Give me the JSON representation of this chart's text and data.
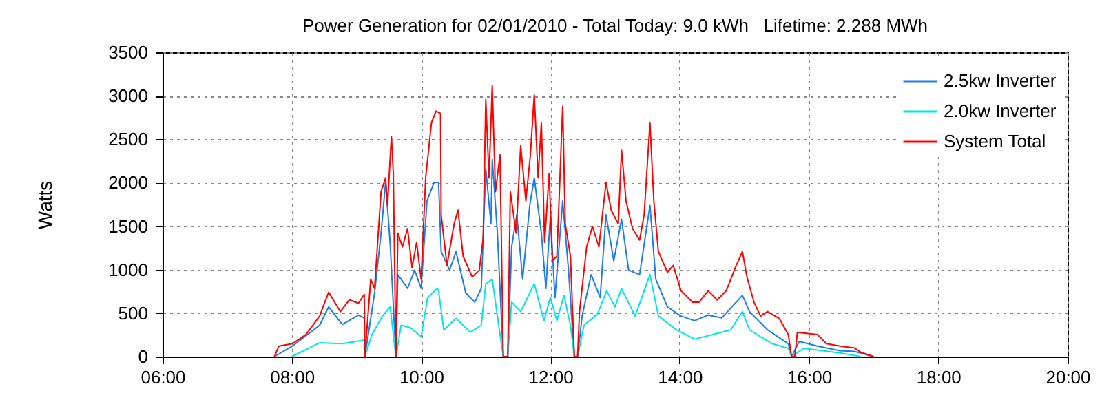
{
  "chart_data": {
    "type": "line",
    "title": "Power Generation for 02/01/2010 - Total Today: 9.0 kWh   Lifetime: 2.288 MWh",
    "ylabel": "Watts",
    "xlim": [
      6,
      20
    ],
    "xticks": [
      {
        "value": 6,
        "label": "06:00"
      },
      {
        "value": 8,
        "label": "08:00"
      },
      {
        "value": 10,
        "label": "10:00"
      },
      {
        "value": 12,
        "label": "12:00"
      },
      {
        "value": 14,
        "label": "14:00"
      },
      {
        "value": 16,
        "label": "16:00"
      },
      {
        "value": 18,
        "label": "18:00"
      },
      {
        "value": 20,
        "label": "20:00"
      }
    ],
    "ylim": [
      0,
      3500
    ],
    "yticks": [
      0,
      500,
      1000,
      1500,
      2000,
      2500,
      3000,
      3500
    ],
    "grid": true,
    "legend": "top right",
    "line_style": "solid",
    "series": [
      {
        "name": "2.5kw Inverter",
        "color": "#1c7ce8",
        "x": [
          7.73,
          8.01,
          8.43,
          8.57,
          8.78,
          9.03,
          9.12,
          9.13,
          9.28,
          9.38,
          9.45,
          9.52,
          9.61,
          9.64,
          9.79,
          9.9,
          10.0,
          10.09,
          10.2,
          10.27,
          10.31,
          10.44,
          10.54,
          10.69,
          10.83,
          10.93,
          11.0,
          11.08,
          11.1,
          11.18,
          11.27,
          11.34,
          11.4,
          11.48,
          11.57,
          11.68,
          11.75,
          11.86,
          11.93,
          12.0,
          12.07,
          12.19,
          12.28,
          12.37,
          12.42,
          12.49,
          12.63,
          12.77,
          12.86,
          12.98,
          13.1,
          13.21,
          13.38,
          13.54,
          13.63,
          13.81,
          14.02,
          14.23,
          14.44,
          14.65,
          14.97,
          15.08,
          15.36,
          15.68,
          15.73,
          15.85,
          16.13,
          16.48,
          16.7,
          17.0
        ],
        "values": [
          0,
          121,
          360,
          572,
          370,
          477,
          445,
          0,
          731,
          1420,
          2003,
          1314,
          0,
          943,
          784,
          995,
          784,
          1790,
          2003,
          2003,
          1208,
          995,
          1208,
          731,
          625,
          784,
          2161,
          1526,
          2268,
          1420,
          0,
          0,
          1261,
          1632,
          890,
          1738,
          2056,
          1420,
          784,
          1632,
          678,
          1790,
          995,
          0,
          0,
          466,
          943,
          678,
          1632,
          1102,
          1579,
          995,
          943,
          1738,
          890,
          572,
          466,
          413,
          477,
          445,
          704,
          518,
          307,
          148,
          0,
          174,
          121,
          68,
          60,
          0
        ]
      },
      {
        "name": "2.0kw Inverter",
        "color": "#00e5e5",
        "x": [
          8.0,
          8.43,
          8.78,
          9.12,
          9.13,
          9.24,
          9.4,
          9.52,
          9.61,
          9.69,
          9.83,
          10.0,
          10.1,
          10.25,
          10.27,
          10.35,
          10.54,
          10.76,
          10.93,
          11.0,
          11.1,
          11.18,
          11.27,
          11.34,
          11.4,
          11.54,
          11.75,
          11.9,
          12.0,
          12.1,
          12.21,
          12.31,
          12.37,
          12.42,
          12.52,
          12.73,
          12.87,
          13.0,
          13.1,
          13.31,
          13.54,
          13.67,
          13.95,
          14.23,
          14.51,
          14.79,
          14.97,
          15.08,
          15.43,
          15.68,
          15.73,
          15.92,
          16.48,
          16.8
        ],
        "values": [
          0,
          159,
          148,
          190,
          0,
          254,
          466,
          572,
          0,
          360,
          334,
          227,
          678,
          784,
          757,
          307,
          439,
          280,
          360,
          837,
          890,
          466,
          0,
          0,
          625,
          518,
          837,
          413,
          678,
          413,
          704,
          360,
          0,
          0,
          360,
          492,
          757,
          572,
          784,
          466,
          943,
          466,
          307,
          201,
          254,
          307,
          518,
          307,
          148,
          95,
          0,
          95,
          42,
          0
        ]
      },
      {
        "name": "System Total",
        "color": "#ff0000",
        "x": [
          7.73,
          7.8,
          8.01,
          8.22,
          8.43,
          8.57,
          8.75,
          8.89,
          9.03,
          9.12,
          9.13,
          9.22,
          9.28,
          9.38,
          9.45,
          9.48,
          9.54,
          9.57,
          9.61,
          9.64,
          9.71,
          9.79,
          9.86,
          9.93,
          10.0,
          10.07,
          10.16,
          10.23,
          10.3,
          10.31,
          10.4,
          10.51,
          10.57,
          10.65,
          10.79,
          10.9,
          10.96,
          11.0,
          11.05,
          11.1,
          11.15,
          11.22,
          11.27,
          11.34,
          11.38,
          11.47,
          11.54,
          11.62,
          11.69,
          11.75,
          11.81,
          11.86,
          11.91,
          11.98,
          12.03,
          12.1,
          12.19,
          12.23,
          12.31,
          12.37,
          12.42,
          12.45,
          12.56,
          12.65,
          12.75,
          12.86,
          12.94,
          13.05,
          13.1,
          13.17,
          13.27,
          13.38,
          13.45,
          13.54,
          13.6,
          13.67,
          13.81,
          13.9,
          14.02,
          14.2,
          14.3,
          14.44,
          14.58,
          14.72,
          14.86,
          14.97,
          15.04,
          15.15,
          15.25,
          15.36,
          15.54,
          15.68,
          15.73,
          15.78,
          15.82,
          16.13,
          16.27,
          16.48,
          16.7,
          16.8,
          17.0
        ],
        "values": [
          0,
          121,
          148,
          254,
          466,
          741,
          518,
          652,
          614,
          715,
          0,
          890,
          784,
          1897,
          2056,
          1738,
          2533,
          2108,
          0,
          1420,
          1261,
          1473,
          1022,
          1314,
          890,
          2056,
          2692,
          2824,
          2798,
          1631,
          1049,
          1526,
          1685,
          1154,
          916,
          995,
          1367,
          2957,
          2056,
          3116,
          1897,
          2321,
          0,
          0,
          1897,
          1420,
          2427,
          1790,
          2321,
          3010,
          2056,
          2692,
          1314,
          2108,
          1102,
          1154,
          2878,
          1526,
          1154,
          0,
          0,
          518,
          1261,
          1499,
          1261,
          2003,
          1685,
          1526,
          2374,
          1790,
          1473,
          1340,
          1632,
          2692,
          1790,
          1208,
          970,
          1049,
          757,
          625,
          625,
          757,
          651,
          757,
          1022,
          1208,
          916,
          625,
          466,
          518,
          439,
          254,
          0,
          0,
          280,
          254,
          148,
          121,
          100,
          50,
          0
        ]
      }
    ]
  }
}
